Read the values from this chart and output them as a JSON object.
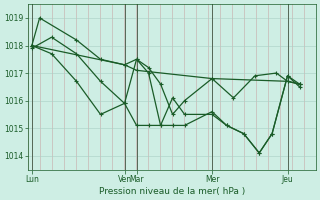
{
  "background_color": "#ceeee4",
  "grid_color_major": "#aacfc4",
  "grid_color_minor_v": "#c8a8a8",
  "line_color": "#1a5c28",
  "xlabel": "Pression niveau de la mer( hPa )",
  "ylim": [
    1013.5,
    1019.5
  ],
  "yticks": [
    1014,
    1015,
    1016,
    1017,
    1018,
    1019
  ],
  "xlim": [
    0,
    336
  ],
  "day_positions": [
    5,
    113,
    127,
    215,
    303
  ],
  "day_labels": [
    "Lun",
    "Ven",
    "Mar",
    "Mer",
    "Jeu"
  ],
  "major_vlines": [
    5,
    113,
    127,
    215,
    303
  ],
  "minor_vlines_step": 14,
  "series1_x": [
    5,
    113,
    127,
    215,
    303,
    317
  ],
  "series1_y": [
    1018.0,
    1017.3,
    1017.1,
    1016.8,
    1016.7,
    1016.6
  ],
  "series2_x": [
    5,
    14,
    57,
    85,
    113,
    127,
    141,
    155,
    169,
    183,
    215,
    240,
    265,
    290,
    303,
    317
  ],
  "series2_y": [
    1018.0,
    1019.0,
    1018.2,
    1017.5,
    1017.3,
    1017.5,
    1017.2,
    1016.6,
    1015.5,
    1016.0,
    1016.8,
    1016.1,
    1016.9,
    1017.0,
    1016.7,
    1016.6
  ],
  "series3_x": [
    5,
    28,
    57,
    85,
    113,
    127,
    141,
    155,
    169,
    183,
    215,
    232,
    252,
    270,
    285,
    303,
    317
  ],
  "series3_y": [
    1017.9,
    1018.3,
    1017.7,
    1016.7,
    1015.9,
    1015.1,
    1015.1,
    1015.1,
    1016.1,
    1015.5,
    1015.5,
    1015.1,
    1014.8,
    1014.1,
    1014.8,
    1016.9,
    1016.6
  ],
  "series4_x": [
    5,
    28,
    57,
    85,
    113,
    127,
    141,
    155,
    169,
    183,
    215,
    232,
    252,
    270,
    285,
    303,
    317
  ],
  "series4_y": [
    1018.0,
    1017.7,
    1016.7,
    1015.5,
    1015.9,
    1017.5,
    1017.0,
    1015.1,
    1015.1,
    1015.1,
    1015.6,
    1015.1,
    1014.8,
    1014.1,
    1014.8,
    1016.9,
    1016.5
  ]
}
